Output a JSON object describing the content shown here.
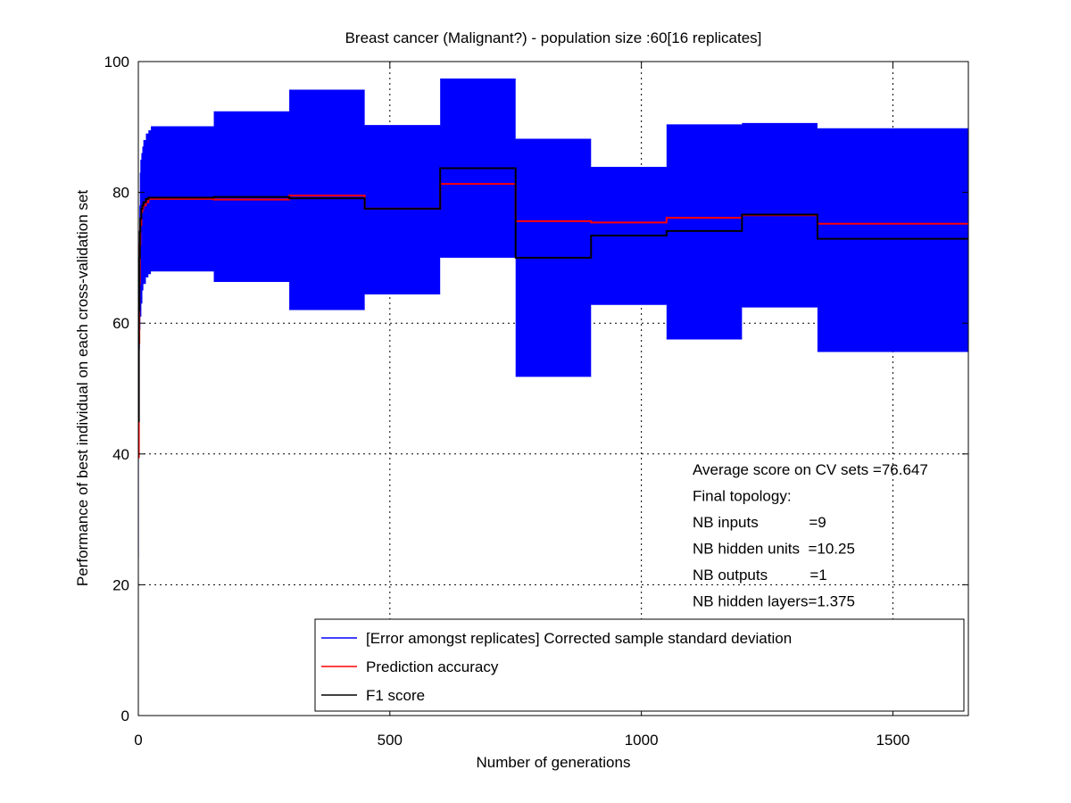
{
  "chart_data": {
    "type": "line",
    "title": "Breast cancer (Malignant?) - population size :60[16 replicates]",
    "xlabel": "Number of generations",
    "ylabel": "Performance of best individual on each cross-validation set",
    "xlim": [
      0,
      1650
    ],
    "ylim": [
      0,
      100
    ],
    "xticks": [
      0,
      500,
      1000,
      1500
    ],
    "yticks": [
      0,
      20,
      40,
      60,
      80,
      100
    ],
    "grid": true,
    "legend_placement": "bottom-center",
    "series": [
      {
        "name": "[Error amongst replicates] Corrected sample standard deviation",
        "color": "#0000ff",
        "style": "error-band",
        "x": [
          0,
          1,
          2,
          3,
          4,
          6,
          8,
          10,
          15,
          20,
          25,
          150,
          300,
          450,
          600,
          750,
          900,
          1050,
          1200,
          1350,
          1650
        ],
        "upper": [
          55,
          70,
          78,
          83,
          85,
          86,
          87,
          88,
          89,
          89.5,
          90,
          92.3,
          95.6,
          90.2,
          97.3,
          88.1,
          83.8,
          90.3,
          90.5,
          89.7,
          89.7
        ],
        "lower": [
          24,
          45,
          56,
          59,
          61,
          63,
          65,
          66,
          67,
          67.5,
          68,
          66.4,
          62.1,
          64.5,
          70.1,
          51.9,
          62.9,
          57.6,
          62.5,
          55.7,
          55.7
        ]
      },
      {
        "name": "Prediction accuracy",
        "color": "#ff0000",
        "style": "step",
        "x": [
          0,
          1,
          2,
          3,
          4,
          6,
          8,
          10,
          15,
          20,
          25,
          150,
          300,
          450,
          600,
          750,
          900,
          1050,
          1200,
          1350,
          1650
        ],
        "y": [
          39.5,
          57,
          66,
          72,
          75,
          77,
          77.5,
          78,
          78.5,
          79,
          79,
          78.9,
          79.5,
          77.5,
          81.3,
          75.6,
          75.4,
          76.1,
          76.5,
          75.2,
          75.2
        ]
      },
      {
        "name": "F1 score",
        "color": "#000000",
        "style": "step",
        "x": [
          0,
          1,
          2,
          3,
          4,
          6,
          8,
          10,
          15,
          20,
          25,
          150,
          300,
          450,
          600,
          750,
          900,
          1050,
          1200,
          1350,
          1650
        ],
        "y": [
          45,
          62,
          70,
          74,
          76,
          77.5,
          78,
          78.5,
          79,
          79.2,
          79.2,
          79.3,
          79.1,
          77.5,
          83.7,
          70.0,
          73.4,
          74.1,
          76.6,
          72.9,
          72.9
        ]
      }
    ],
    "annotations": [
      "Average score on CV sets =76.647",
      "Final topology:",
      "NB inputs            =9",
      "NB hidden units  =10.25",
      "NB outputs          =1",
      "NB hidden layers=1.375"
    ]
  }
}
